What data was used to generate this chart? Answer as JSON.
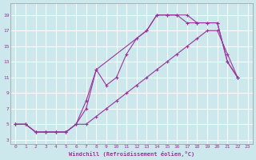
{
  "bg_color": "#cce8ed",
  "line_color": "#993399",
  "grid_color": "#aadddd",
  "xlabel": "Windchill (Refroidissement éolien,°C)",
  "xlim": [
    -0.5,
    23.5
  ],
  "ylim": [
    2.5,
    20.5
  ],
  "xticks": [
    0,
    1,
    2,
    3,
    4,
    5,
    6,
    7,
    8,
    9,
    10,
    11,
    12,
    13,
    14,
    15,
    16,
    17,
    18,
    19,
    20,
    21,
    22,
    23
  ],
  "yticks": [
    3,
    5,
    7,
    9,
    11,
    13,
    15,
    17,
    19
  ],
  "curve1_x": [
    0,
    1,
    2,
    3,
    4,
    5,
    6,
    7,
    8,
    13,
    14,
    15,
    16,
    17,
    18,
    19,
    20,
    21,
    22
  ],
  "curve1_y": [
    5,
    5,
    4,
    4,
    4,
    4,
    5,
    7,
    12,
    17,
    19,
    19,
    19,
    19,
    18,
    18,
    18,
    13,
    11
  ],
  "curve2_x": [
    0,
    1,
    2,
    3,
    4,
    5,
    6,
    7,
    8,
    9,
    10,
    11,
    12,
    13,
    14,
    15,
    16,
    17,
    18,
    19,
    20,
    21,
    22
  ],
  "curve2_y": [
    5,
    5,
    4,
    4,
    4,
    4,
    5,
    8,
    12,
    10,
    11,
    14,
    16,
    17,
    19,
    19,
    19,
    18,
    18,
    18,
    18,
    13,
    11
  ],
  "curve3_x": [
    0,
    1,
    2,
    3,
    4,
    5,
    6,
    7,
    8,
    9,
    10,
    11,
    12,
    13,
    14,
    15,
    16,
    17,
    18,
    19,
    20,
    21,
    22
  ],
  "curve3_y": [
    5,
    5,
    4,
    4,
    4,
    4,
    5,
    5,
    6,
    7,
    8,
    9,
    10,
    11,
    12,
    13,
    14,
    15,
    16,
    17,
    17,
    14,
    11
  ]
}
